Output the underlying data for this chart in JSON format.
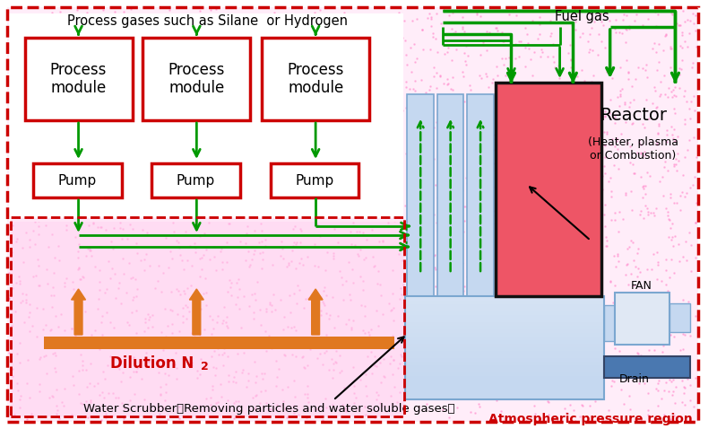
{
  "green": "#009900",
  "orange": "#e07820",
  "red_border": "#cc0000",
  "blue_light": "#c5d8f0",
  "blue_medium": "#7ba7d0",
  "blue_dark": "#4a78b0",
  "red_fill": "#ee5566",
  "pink_bg": "#ffccee",
  "label_atmospheric": "Atmospheric pressure region",
  "label_fuel": "Fuel gas",
  "label_reactor": "Reactor",
  "label_reactor_sub1": "(Heater, plasma",
  "label_reactor_sub2": "or Combustion)",
  "label_dilution": "Dilution N",
  "label_dilution_sub": "2",
  "label_scrubber": "Water Scrubber（Removing particles and water soluble gases）",
  "label_process_gas": "Process gases such as Silane  or Hydrogen",
  "label_fan": "FAN",
  "label_drain": "Drain",
  "label_pump": "Pump",
  "label_process_module": "Process\nmodule"
}
